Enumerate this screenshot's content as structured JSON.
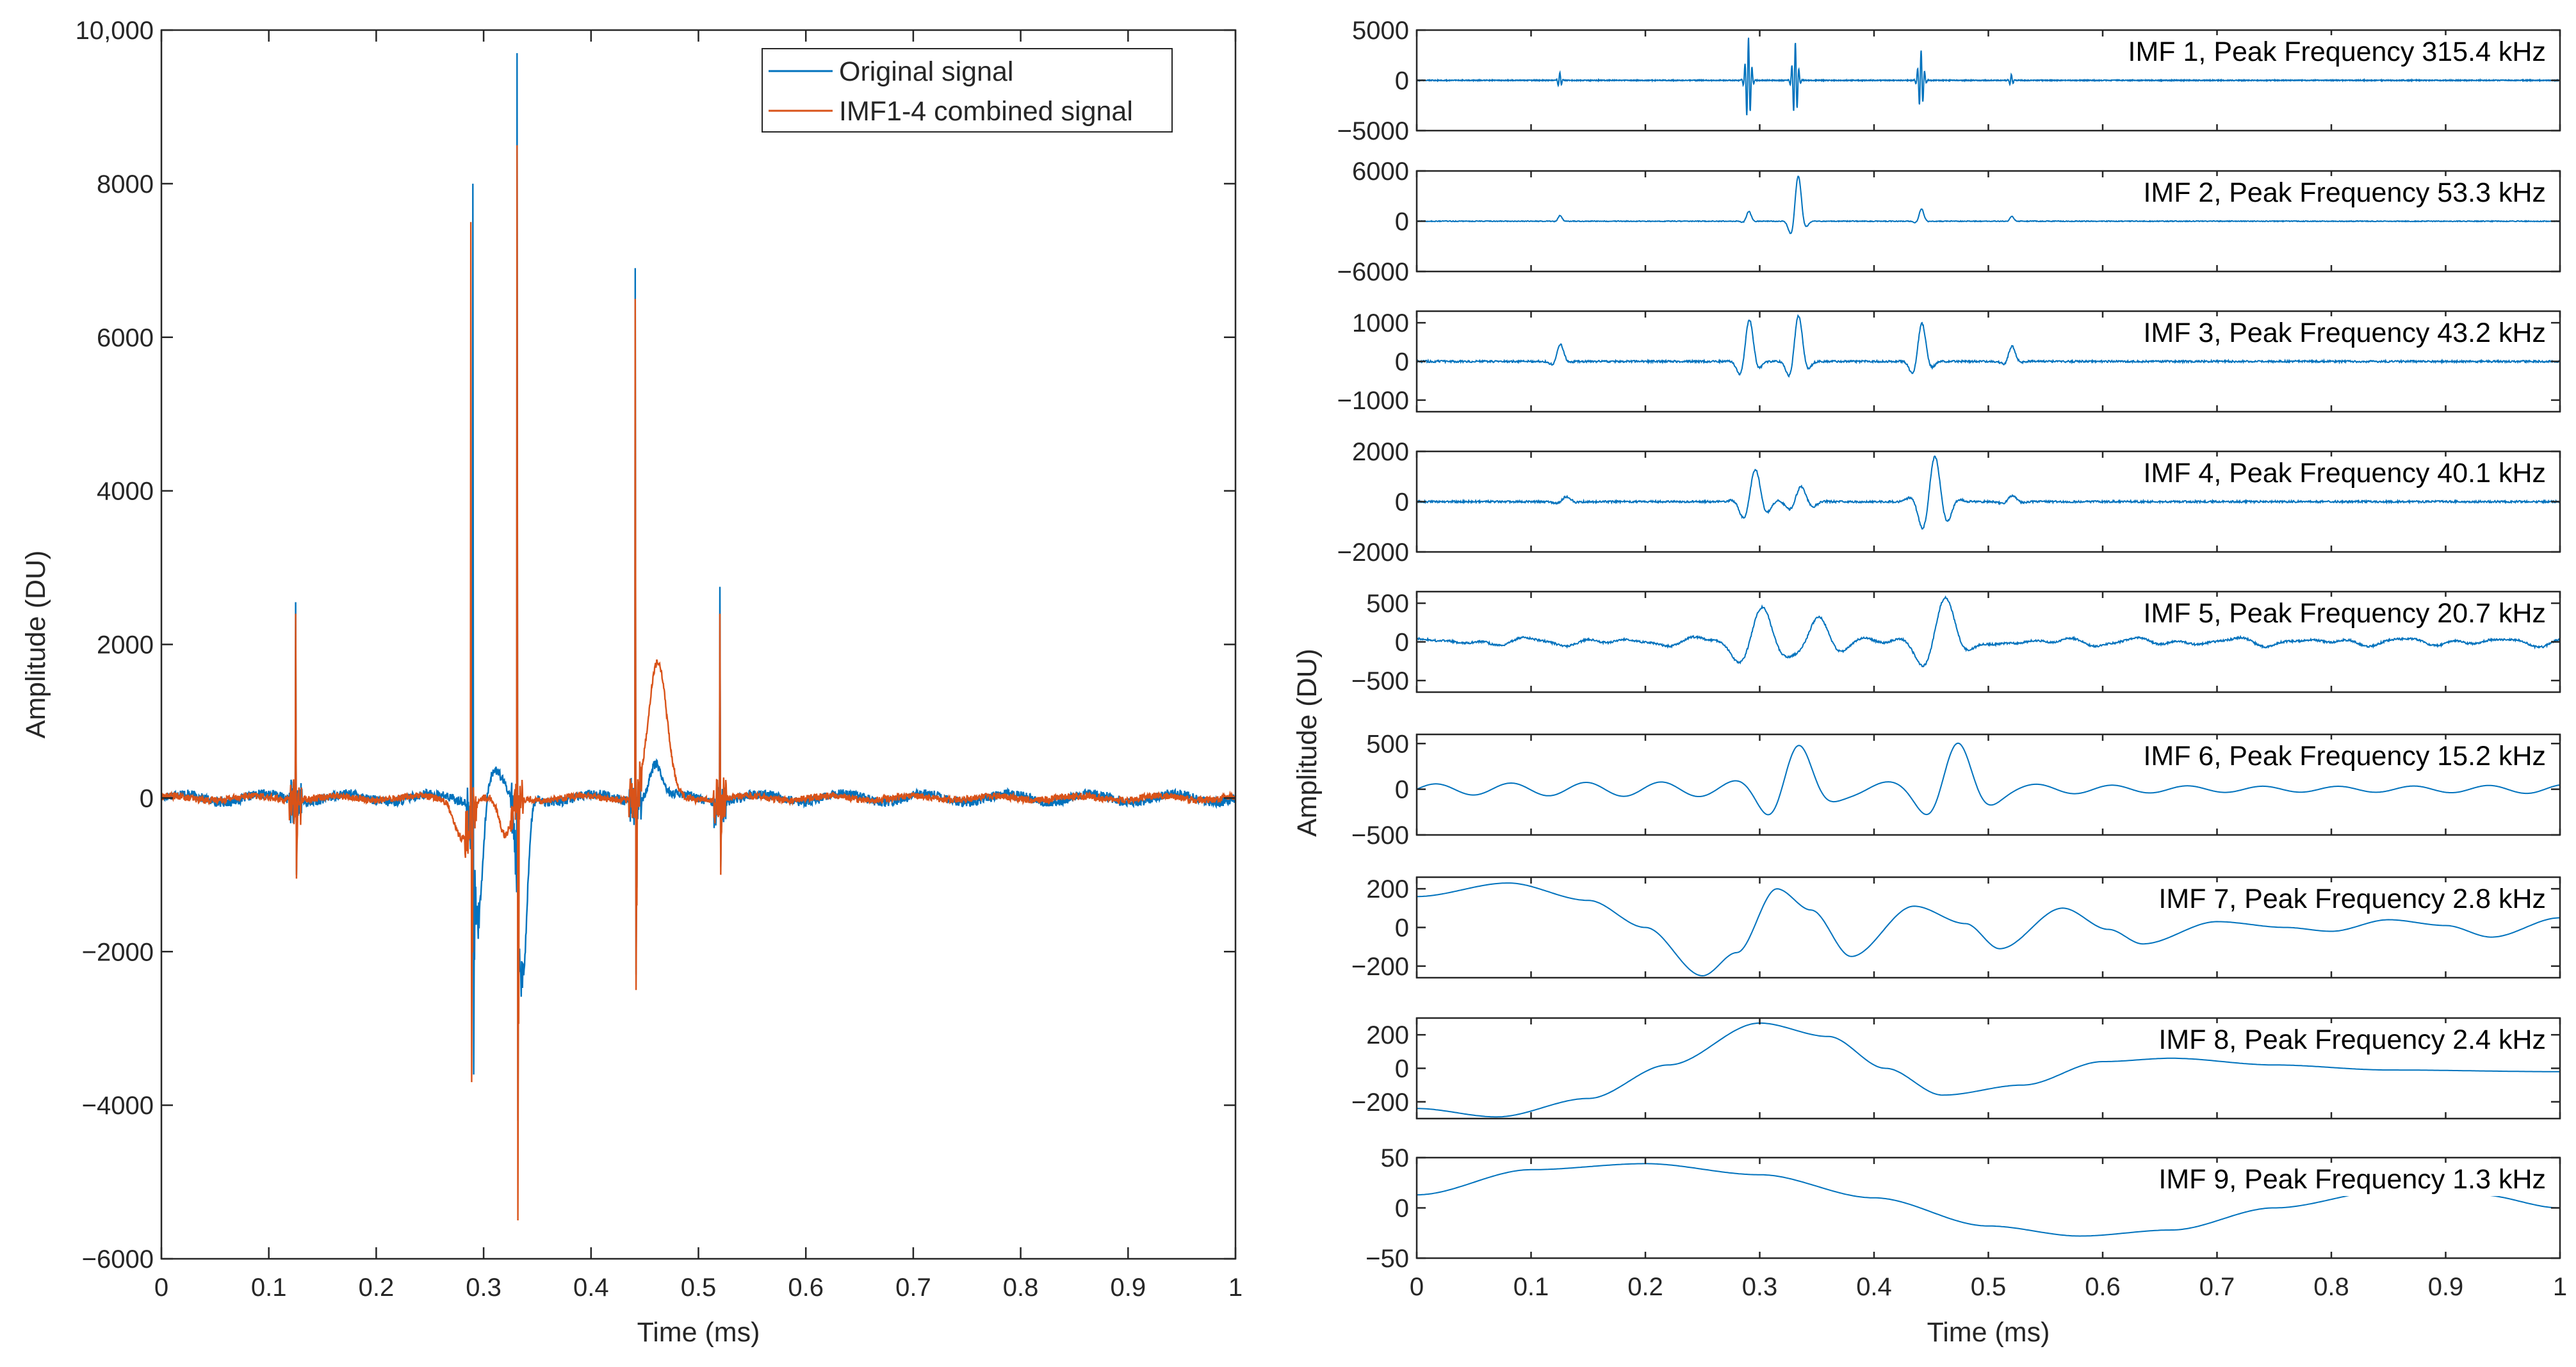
{
  "chart_data": [
    {
      "type": "line",
      "xlabel": "Time (ms)",
      "ylabel": "Amplitude (DU)",
      "xlim": [
        0,
        1
      ],
      "ylim": [
        -6000,
        10000
      ],
      "xticks": [
        0,
        0.1,
        0.2,
        0.3,
        0.4,
        0.5,
        0.6,
        0.7,
        0.8,
        0.9,
        1
      ],
      "xtick_labels": [
        "0",
        "0.1",
        "0.2",
        "0.3",
        "0.4",
        "0.5",
        "0.6",
        "0.7",
        "0.8",
        "0.9",
        "1"
      ],
      "yticks": [
        -6000,
        -4000,
        -2000,
        0,
        2000,
        4000,
        6000,
        8000,
        10000
      ],
      "ytick_labels": [
        "−6000",
        "−4000",
        "−2000",
        "0",
        "2000",
        "4000",
        "6000",
        "8000",
        "10,000"
      ],
      "legend_position": "top-right",
      "series": [
        {
          "name": "Original signal",
          "color": "#0072BD",
          "noise": 60,
          "spikes": [
            {
              "t": 0.125,
              "v": 2550,
              "neg": -1000
            },
            {
              "t": 0.29,
              "v": 8000,
              "neg": -3600
            },
            {
              "t": 0.331,
              "v": 9700,
              "neg": -4200
            },
            {
              "t": 0.441,
              "v": 6900,
              "neg": -2300
            },
            {
              "t": 0.52,
              "v": 2750,
              "neg": -900
            }
          ],
          "humps": [
            {
              "t": 0.46,
              "v": 450,
              "w": 0.008
            },
            {
              "t": 0.31,
              "v": 350,
              "w": 0.01
            },
            {
              "t": 0.295,
              "v": -1500,
              "w": 0.006
            },
            {
              "t": 0.336,
              "v": -2500,
              "w": 0.006
            }
          ]
        },
        {
          "name": "IMF1-4 combined signal",
          "color": "#D95319",
          "noise": 45,
          "spikes": [
            {
              "t": 0.125,
              "v": 2400,
              "neg": -1050
            },
            {
              "t": 0.288,
              "v": 7500,
              "neg": -3700
            },
            {
              "t": 0.331,
              "v": 8500,
              "neg": -5500
            },
            {
              "t": 0.441,
              "v": 6500,
              "neg": -2500
            },
            {
              "t": 0.52,
              "v": 2400,
              "neg": -1000
            }
          ],
          "humps": [
            {
              "t": 0.462,
              "v": 1750,
              "w": 0.012
            },
            {
              "t": 0.28,
              "v": -500,
              "w": 0.01
            },
            {
              "t": 0.32,
              "v": -500,
              "w": 0.008
            }
          ]
        }
      ]
    },
    {
      "type": "line",
      "xlabel": "Time (ms)",
      "ylabel": "Amplitude (DU)",
      "xlim": [
        0,
        1
      ],
      "xticks": [
        0,
        0.1,
        0.2,
        0.3,
        0.4,
        0.5,
        0.6,
        0.7,
        0.8,
        0.9,
        1
      ],
      "xtick_labels": [
        "0",
        "0.1",
        "0.2",
        "0.3",
        "0.4",
        "0.5",
        "0.6",
        "0.7",
        "0.8",
        "0.9",
        "1"
      ],
      "color": "#0072BD",
      "panels": [
        {
          "title": "IMF 1, Peak Frequency 315.4 kHz",
          "ylim": [
            -5000,
            5000
          ],
          "yticks": [
            -5000,
            0,
            5000
          ],
          "ytick_labels": [
            "−5000",
            "0",
            "5000"
          ],
          "kind": "bursts",
          "freq_khz": 315.4,
          "bursts": [
            {
              "t": 0.125,
              "a": 800,
              "w": 0.002
            },
            {
              "t": 0.29,
              "a": 4300,
              "w": 0.003
            },
            {
              "t": 0.331,
              "a": 3800,
              "w": 0.003
            },
            {
              "t": 0.441,
              "a": 3000,
              "w": 0.003
            },
            {
              "t": 0.52,
              "a": 600,
              "w": 0.002
            }
          ]
        },
        {
          "title": "IMF 2, Peak Frequency 53.3 kHz",
          "ylim": [
            -6000,
            6000
          ],
          "yticks": [
            -6000,
            0,
            6000
          ],
          "ytick_labels": [
            "−6000",
            "0",
            "6000"
          ],
          "kind": "bursts",
          "freq_khz": 53.3,
          "bursts": [
            {
              "t": 0.125,
              "a": 700,
              "w": 0.003
            },
            {
              "t": 0.29,
              "a": 1200,
              "w": 0.004
            },
            {
              "t": 0.333,
              "a": 5500,
              "w": 0.006
            },
            {
              "t": 0.441,
              "a": 1500,
              "w": 0.004
            },
            {
              "t": 0.52,
              "a": 600,
              "w": 0.003
            }
          ]
        },
        {
          "title": "IMF 3, Peak Frequency 43.2 kHz",
          "ylim": [
            -1300,
            1300
          ],
          "yticks": [
            -1000,
            0,
            1000
          ],
          "ytick_labels": [
            "−1000",
            "0",
            "1000"
          ],
          "kind": "bursts",
          "freq_khz": 43.2,
          "bursts": [
            {
              "t": 0.125,
              "a": 450,
              "w": 0.006
            },
            {
              "t": 0.29,
              "a": 1100,
              "w": 0.008
            },
            {
              "t": 0.333,
              "a": 1200,
              "w": 0.008
            },
            {
              "t": 0.441,
              "a": 1000,
              "w": 0.008
            },
            {
              "t": 0.52,
              "a": 400,
              "w": 0.006
            }
          ]
        },
        {
          "title": "IMF 4, Peak Frequency 40.1 kHz",
          "ylim": [
            -2000,
            2000
          ],
          "yticks": [
            -2000,
            0,
            2000
          ],
          "ytick_labels": [
            "−2000",
            "0",
            "2000"
          ],
          "kind": "bursts",
          "freq_khz": 40.1,
          "bursts": [
            {
              "t": 0.13,
              "a": 200,
              "w": 0.008
            },
            {
              "t": 0.295,
              "a": 1300,
              "w": 0.012
            },
            {
              "t": 0.335,
              "a": 600,
              "w": 0.012
            },
            {
              "t": 0.452,
              "a": 1800,
              "w": 0.014
            },
            {
              "t": 0.52,
              "a": 250,
              "w": 0.008
            }
          ]
        },
        {
          "title": "IMF 5, Peak Frequency 20.7 kHz",
          "ylim": [
            -650,
            650
          ],
          "yticks": [
            -500,
            0,
            500
          ],
          "ytick_labels": [
            "−500",
            "0",
            "500"
          ],
          "kind": "bursts",
          "freq_khz": 20.7,
          "bursts": [
            {
              "t": 0.3,
              "a": 450,
              "w": 0.025
            },
            {
              "t": 0.35,
              "a": 350,
              "w": 0.02
            },
            {
              "t": 0.46,
              "a": 600,
              "w": 0.022
            }
          ],
          "bg": [
            {
              "f": 13,
              "a": 30
            },
            {
              "f": 21,
              "a": 25
            },
            {
              "f": 33,
              "a": 15
            }
          ]
        },
        {
          "title": "IMF 6, Peak Frequency 15.2 kHz",
          "ylim": [
            -500,
            600
          ],
          "yticks": [
            -500,
            0,
            500
          ],
          "ytick_labels": [
            "−500",
            "0",
            "500"
          ],
          "kind": "wave",
          "freq_khz": 15.2,
          "amp": 80,
          "bursts": [
            {
              "t": 0.33,
              "a": 450,
              "w": 0.03
            },
            {
              "t": 0.47,
              "a": 450,
              "w": 0.03
            }
          ]
        },
        {
          "title": "IMF 7, Peak Frequency 2.8 kHz",
          "ylim": [
            -260,
            260
          ],
          "yticks": [
            -200,
            0,
            200
          ],
          "ytick_labels": [
            "−200",
            "0",
            "200"
          ],
          "kind": "points",
          "points": [
            [
              0,
              160
            ],
            [
              0.08,
              230
            ],
            [
              0.15,
              140
            ],
            [
              0.2,
              0
            ],
            [
              0.25,
              -250
            ],
            [
              0.28,
              -130
            ],
            [
              0.315,
              200
            ],
            [
              0.345,
              90
            ],
            [
              0.38,
              -150
            ],
            [
              0.435,
              110
            ],
            [
              0.48,
              20
            ],
            [
              0.51,
              -110
            ],
            [
              0.565,
              100
            ],
            [
              0.605,
              -10
            ],
            [
              0.635,
              -85
            ],
            [
              0.7,
              30
            ],
            [
              0.76,
              0
            ],
            [
              0.8,
              -20
            ],
            [
              0.85,
              40
            ],
            [
              0.9,
              10
            ],
            [
              0.94,
              -50
            ],
            [
              1,
              50
            ]
          ]
        },
        {
          "title": "IMF 8, Peak Frequency 2.4 kHz",
          "ylim": [
            -300,
            300
          ],
          "yticks": [
            -200,
            0,
            200
          ],
          "ytick_labels": [
            "−200",
            "0",
            "200"
          ],
          "kind": "points",
          "points": [
            [
              0,
              -240
            ],
            [
              0.07,
              -290
            ],
            [
              0.15,
              -180
            ],
            [
              0.22,
              20
            ],
            [
              0.3,
              270
            ],
            [
              0.36,
              190
            ],
            [
              0.41,
              0
            ],
            [
              0.46,
              -160
            ],
            [
              0.53,
              -100
            ],
            [
              0.6,
              40
            ],
            [
              0.66,
              60
            ],
            [
              0.75,
              20
            ],
            [
              0.85,
              -10
            ],
            [
              1,
              -20
            ]
          ]
        },
        {
          "title": "IMF 9, Peak Frequency 1.3 kHz",
          "ylim": [
            -50,
            50
          ],
          "yticks": [
            -50,
            0,
            50
          ],
          "ytick_labels": [
            "−50",
            "0",
            "50"
          ],
          "kind": "points",
          "points": [
            [
              0,
              13
            ],
            [
              0.1,
              38
            ],
            [
              0.2,
              44
            ],
            [
              0.3,
              33
            ],
            [
              0.4,
              10
            ],
            [
              0.5,
              -18
            ],
            [
              0.58,
              -28
            ],
            [
              0.66,
              -22
            ],
            [
              0.75,
              0
            ],
            [
              0.85,
              17
            ],
            [
              0.93,
              13
            ],
            [
              1,
              0
            ]
          ]
        }
      ]
    }
  ]
}
